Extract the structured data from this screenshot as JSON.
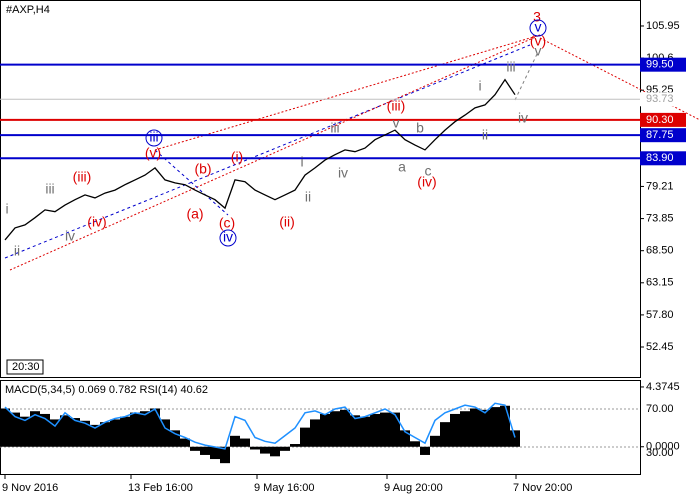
{
  "chart_data": {
    "type": "line",
    "title": "#AXP,H4",
    "time_label": "20:30",
    "xticks": [
      {
        "value": 0,
        "label": "9 Nov 2016"
      },
      {
        "value": 12.6,
        "label": "13 Feb 16:00"
      },
      {
        "value": 25.2,
        "label": "9 May 16:00"
      },
      {
        "value": 38.2,
        "label": "9 Aug 20:00"
      },
      {
        "value": 51.1,
        "label": "7 Nov 20:00"
      }
    ],
    "xlim": [
      -0.5,
      63.5
    ],
    "ylim": [
      47.45,
      110.28
    ],
    "yticks": [
      105.95,
      100.6,
      95.25,
      {
        "value": 79.21,
        "label": "79.21"
      },
      73.85,
      {
        "value": 68.5,
        "label": "68.50"
      },
      63.15,
      {
        "value": 57.8,
        "label": "57.80"
      },
      52.45
    ],
    "price": {
      "color": "#000000",
      "values": [
        70.3,
        72.3,
        72.8,
        74.0,
        75.3,
        75.0,
        76.1,
        77.0,
        77.8,
        77.3,
        78.1,
        78.6,
        79.5,
        80.3,
        81.1,
        82.3,
        80.3,
        79.8,
        79.5,
        78.6,
        77.8,
        77.0,
        75.6,
        80.3,
        80.0,
        78.6,
        77.8,
        77.0,
        77.8,
        78.6,
        81.1,
        82.3,
        83.6,
        84.5,
        85.3,
        85.0,
        85.6,
        87.0,
        87.8,
        88.6,
        87.0,
        86.1,
        85.3,
        87.0,
        88.6,
        90.0,
        91.1,
        92.3,
        92.8,
        94.5,
        97.0,
        94.5
      ]
    },
    "levels": [
      {
        "value": 99.5,
        "label": "99.50",
        "color": "#0000cc"
      },
      {
        "value": 93.73,
        "label": "93.73",
        "color": "#c0c0c0"
      },
      {
        "value": 90.3,
        "label": "90.30",
        "color": "#dd0000"
      },
      {
        "value": 87.75,
        "label": "87.75",
        "color": "#0000cc"
      },
      {
        "value": 83.9,
        "label": "83.90",
        "color": "#0000cc"
      }
    ],
    "indicator_label": "MACD(5,34,5) 0.069 0.782 RSI(14) 40.62",
    "macd_ylim": [
      -1.92,
      4.81
    ],
    "macd_ticks": [
      {
        "value": 4.3745,
        "label": "4.3745"
      },
      {
        "value": 0,
        "label": "0.0000"
      }
    ],
    "rsi_ylim": [
      2.6,
      99.5
    ],
    "rsi_ticks": [
      {
        "value": 70,
        "label": "70.00"
      },
      {
        "value": 30,
        "label": "30.00"
      }
    ],
    "macd": {
      "color": "#000000",
      "values": [
        2.8,
        2.5,
        2.2,
        2.6,
        2.4,
        2.0,
        2.3,
        2.1,
        1.9,
        1.6,
        1.8,
        2.0,
        2.2,
        2.5,
        2.6,
        2.8,
        2.0,
        1.2,
        0.6,
        -0.3,
        -0.6,
        -0.9,
        -1.2,
        0.8,
        0.6,
        -0.2,
        -0.5,
        -0.7,
        -0.3,
        0.2,
        1.4,
        2.0,
        2.4,
        2.6,
        2.7,
        2.3,
        2.2,
        2.4,
        2.5,
        2.5,
        1.2,
        0.4,
        -0.6,
        0.8,
        1.8,
        2.4,
        2.6,
        2.8,
        2.7,
        2.9,
        3.0,
        1.2
      ]
    },
    "rsi": {
      "color": "#1e90ff",
      "values": [
        72,
        62,
        58,
        64,
        60,
        52,
        66,
        58,
        55,
        50,
        56,
        60,
        62,
        66,
        64,
        70,
        50,
        44,
        40,
        35,
        32,
        30,
        28,
        62,
        58,
        40,
        36,
        34,
        42,
        50,
        66,
        68,
        64,
        70,
        72,
        60,
        62,
        66,
        70,
        64,
        46,
        40,
        34,
        58,
        66,
        70,
        74,
        72,
        66,
        76,
        74,
        40
      ]
    },
    "annotations": [
      "i",
      "ii",
      "iii",
      "iv",
      "(iii)",
      "(iv)",
      "(v)",
      "iii",
      "(a)",
      "(b)",
      "(c)",
      "iv",
      "(i)",
      "(ii)",
      "i",
      "ii",
      "iii",
      "iv",
      "(iii)",
      "v",
      "b",
      "a",
      "c",
      "(iv)",
      "i",
      "ii",
      "iii",
      "iv",
      "3",
      "v",
      "(v)",
      "v"
    ]
  }
}
